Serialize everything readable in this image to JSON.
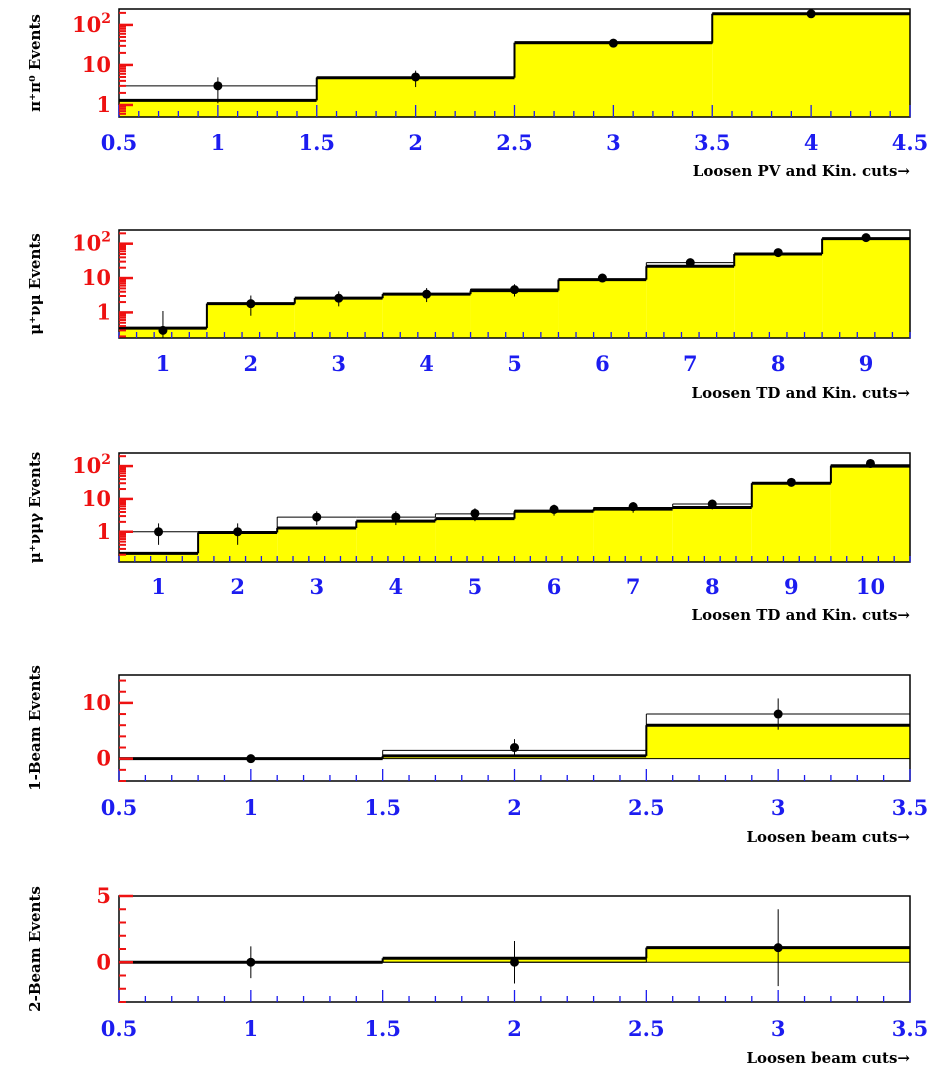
{
  "colors": {
    "fill": "#ffff00",
    "frame": "#000000",
    "x_tick_text": "#1c1cf0",
    "y_tick_text": "#ee1111"
  },
  "chart_data": [
    {
      "type": "bar",
      "ylabel": "π⁺π⁰ Events",
      "xlabel": "Loosen PV and Kin. cuts→",
      "x": [
        1,
        2,
        3,
        4
      ],
      "xlim": [
        0.5,
        4.5
      ],
      "x_ticks": [
        "0.5",
        "1",
        "1.5",
        "2",
        "2.5",
        "3",
        "3.5",
        "4",
        "4.5"
      ],
      "yscale": "log",
      "ylim": [
        0.5,
        250
      ],
      "y_ticks": [
        "1",
        "10",
        "10²"
      ],
      "series": [
        {
          "kind": "histogram_fill",
          "values": [
            1.3,
            4.8,
            36,
            190
          ]
        },
        {
          "kind": "histogram_line",
          "values": [
            3,
            5,
            34,
            190
          ]
        },
        {
          "kind": "points",
          "values": [
            3,
            5,
            35,
            190
          ],
          "err_low": [
            1.9,
            2.2,
            5,
            12
          ],
          "err_high": [
            1.9,
            2.2,
            5,
            12
          ]
        }
      ]
    },
    {
      "type": "bar",
      "ylabel": "μ⁺νμ Events",
      "xlabel": "Loosen TD and Kin. cuts→",
      "x": [
        1,
        2,
        3,
        4,
        5,
        6,
        7,
        8,
        9
      ],
      "xlim": [
        0.5,
        9.5
      ],
      "x_ticks": [
        "1",
        "2",
        "3",
        "4",
        "5",
        "6",
        "7",
        "8",
        "9"
      ],
      "yscale": "log",
      "ylim": [
        0.18,
        250
      ],
      "y_ticks": [
        "1",
        "10",
        "10²"
      ],
      "series": [
        {
          "kind": "histogram_fill",
          "values": [
            0.35,
            1.8,
            2.6,
            3.4,
            4.3,
            9,
            22,
            50,
            140
          ]
        },
        {
          "kind": "histogram_line",
          "values": [
            0.35,
            1.8,
            2.6,
            3.4,
            4.8,
            9,
            28,
            50,
            140
          ]
        },
        {
          "kind": "points",
          "values": [
            0.3,
            1.8,
            2.6,
            3.4,
            4.6,
            10,
            28,
            55,
            150
          ],
          "err_low": [
            0.2,
            1.0,
            1.1,
            1.4,
            1.7,
            2.2,
            4,
            6,
            10
          ],
          "err_high": [
            0.8,
            1.3,
            1.5,
            1.7,
            2.0,
            2.8,
            4,
            6,
            10
          ]
        }
      ]
    },
    {
      "type": "bar",
      "ylabel": "μ⁺νμγ Events",
      "xlabel": "Loosen TD and Kin. cuts→",
      "x": [
        1,
        2,
        3,
        4,
        5,
        6,
        7,
        8,
        9,
        10
      ],
      "xlim": [
        0.5,
        10.5
      ],
      "x_ticks": [
        "1",
        "2",
        "3",
        "4",
        "5",
        "6",
        "7",
        "8",
        "9",
        "10"
      ],
      "yscale": "log",
      "ylim": [
        0.12,
        250
      ],
      "y_ticks": [
        "1",
        "10",
        "10²"
      ],
      "series": [
        {
          "kind": "histogram_fill",
          "values": [
            0.22,
            0.95,
            1.3,
            2.1,
            2.5,
            4.2,
            4.9,
            5.5,
            30,
            100
          ]
        },
        {
          "kind": "histogram_line",
          "values": [
            1,
            1,
            2.8,
            2.8,
            3.5,
            4.5,
            5.5,
            7,
            30,
            110
          ]
        },
        {
          "kind": "points",
          "values": [
            1,
            1,
            2.8,
            2.8,
            3.6,
            4.8,
            5.8,
            7,
            32,
            120
          ],
          "err_low": [
            0.6,
            0.6,
            1.2,
            1.2,
            1.5,
            1.7,
            2.0,
            2.2,
            5,
            10
          ],
          "err_high": [
            0.8,
            0.8,
            1.4,
            1.4,
            1.6,
            1.9,
            2.2,
            2.5,
            5,
            10
          ]
        }
      ]
    },
    {
      "type": "bar",
      "ylabel": "1-Beam Events",
      "xlabel": "Loosen beam cuts→",
      "x": [
        1,
        2,
        3
      ],
      "xlim": [
        0.5,
        3.5
      ],
      "x_ticks": [
        "0.5",
        "1",
        "1.5",
        "2",
        "2.5",
        "3",
        "3.5"
      ],
      "yscale": "linear",
      "ylim": [
        -4,
        15
      ],
      "y_ticks": [
        "0",
        "10"
      ],
      "series": [
        {
          "kind": "histogram_fill",
          "values": [
            0,
            0.5,
            6.0
          ]
        },
        {
          "kind": "histogram_line",
          "values": [
            0,
            1.5,
            8.0
          ]
        },
        {
          "kind": "points",
          "values": [
            0,
            2.0,
            8.0
          ],
          "err_low": [
            0,
            1.5,
            2.8
          ],
          "err_high": [
            0,
            1.5,
            2.8
          ]
        }
      ]
    },
    {
      "type": "bar",
      "ylabel": "2-Beam Events",
      "xlabel": "Loosen beam cuts→",
      "x": [
        1,
        2,
        3
      ],
      "xlim": [
        0.5,
        3.5
      ],
      "x_ticks": [
        "0.5",
        "1",
        "1.5",
        "2",
        "2.5",
        "3",
        "3.5"
      ],
      "yscale": "linear",
      "ylim": [
        -3,
        5
      ],
      "y_ticks": [
        "0",
        "5"
      ],
      "series": [
        {
          "kind": "histogram_fill",
          "values": [
            0,
            0.3,
            1.1
          ]
        },
        {
          "kind": "histogram_line",
          "values": [
            0,
            0,
            1.1
          ]
        },
        {
          "kind": "points",
          "values": [
            0,
            0,
            1.1
          ],
          "err_low": [
            1.2,
            1.6,
            2.9
          ],
          "err_high": [
            1.2,
            1.6,
            2.9
          ]
        }
      ]
    }
  ]
}
